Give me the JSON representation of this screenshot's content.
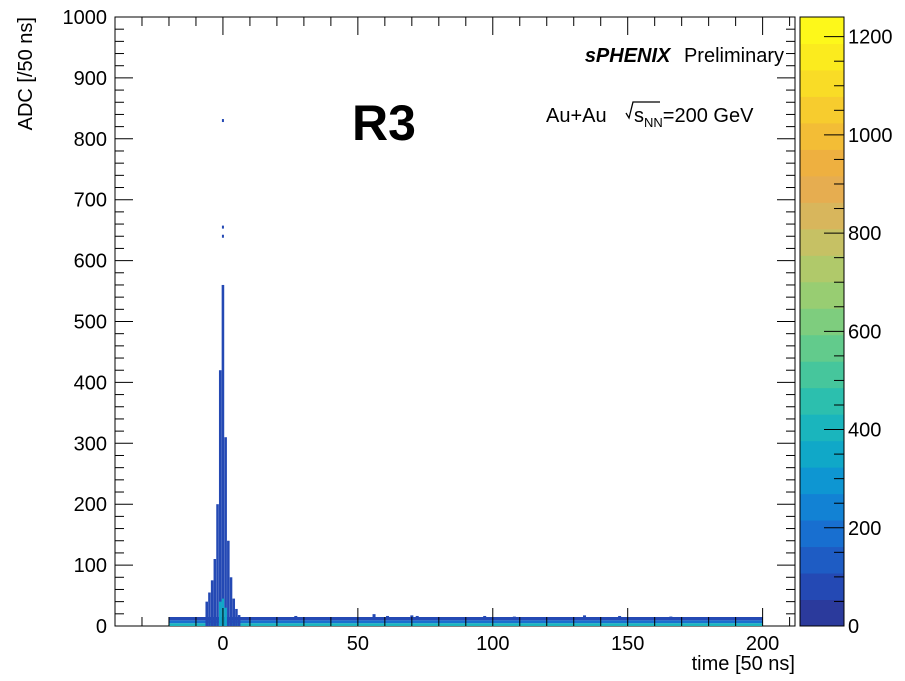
{
  "chart_data": {
    "type": "heatmap",
    "title": "R3",
    "xlabel": "time [50 ns]",
    "ylabel": "ADC [/50 ns]",
    "xlim": [
      -40,
      212
    ],
    "ylim": [
      0,
      1000
    ],
    "x_ticks": [
      0,
      50,
      100,
      150,
      200
    ],
    "y_ticks": [
      0,
      100,
      200,
      300,
      400,
      500,
      600,
      700,
      800,
      900,
      1000
    ],
    "colorbar": {
      "range": [
        0,
        1240
      ],
      "ticks": [
        0,
        200,
        400,
        600,
        800,
        1000,
        1200
      ],
      "palette": [
        "#2b3a9c",
        "#2449b4",
        "#1e5cc4",
        "#186fd0",
        "#1282d4",
        "#0e96d2",
        "#10a8c8",
        "#1ab5bd",
        "#2cbfae",
        "#46c69c",
        "#62cb8c",
        "#7ecd7e",
        "#98cd72",
        "#b0c96a",
        "#c6c164",
        "#d8b65c",
        "#e6ad50",
        "#eeb040",
        "#f3bd36",
        "#f7cc2e",
        "#f9dc26",
        "#fbeb1e",
        "#fdf81a"
      ]
    },
    "annotations": {
      "experiment": "sPHENIX",
      "status": "Preliminary",
      "system": "Au+Au",
      "energy_var": "s",
      "energy_sub": "NN",
      "energy_value": "=200 GeV"
    },
    "baseline_band": {
      "x_range": [
        -20,
        200
      ],
      "y_range": [
        0,
        14
      ],
      "level_cells": [
        380,
        200,
        60
      ]
    },
    "peak": {
      "x": 0,
      "column_max_y": [
        [
          -6,
          40
        ],
        [
          -5,
          55
        ],
        [
          -4,
          75
        ],
        [
          -3,
          110
        ],
        [
          -2,
          200
        ],
        [
          -1,
          420
        ],
        [
          0,
          560
        ],
        [
          1,
          310
        ],
        [
          2,
          140
        ],
        [
          3,
          80
        ],
        [
          4,
          45
        ],
        [
          5,
          28
        ],
        [
          6,
          18
        ]
      ],
      "outliers": [
        [
          0,
          655
        ],
        [
          0,
          640
        ],
        [
          0,
          830
        ]
      ],
      "sparse_points": [
        [
          27,
          14
        ],
        [
          56,
          17
        ],
        [
          61,
          14
        ],
        [
          70,
          15
        ],
        [
          72,
          14
        ],
        [
          97,
          14
        ],
        [
          108,
          13
        ],
        [
          134,
          15
        ],
        [
          147,
          14
        ],
        [
          166,
          13
        ]
      ]
    }
  }
}
